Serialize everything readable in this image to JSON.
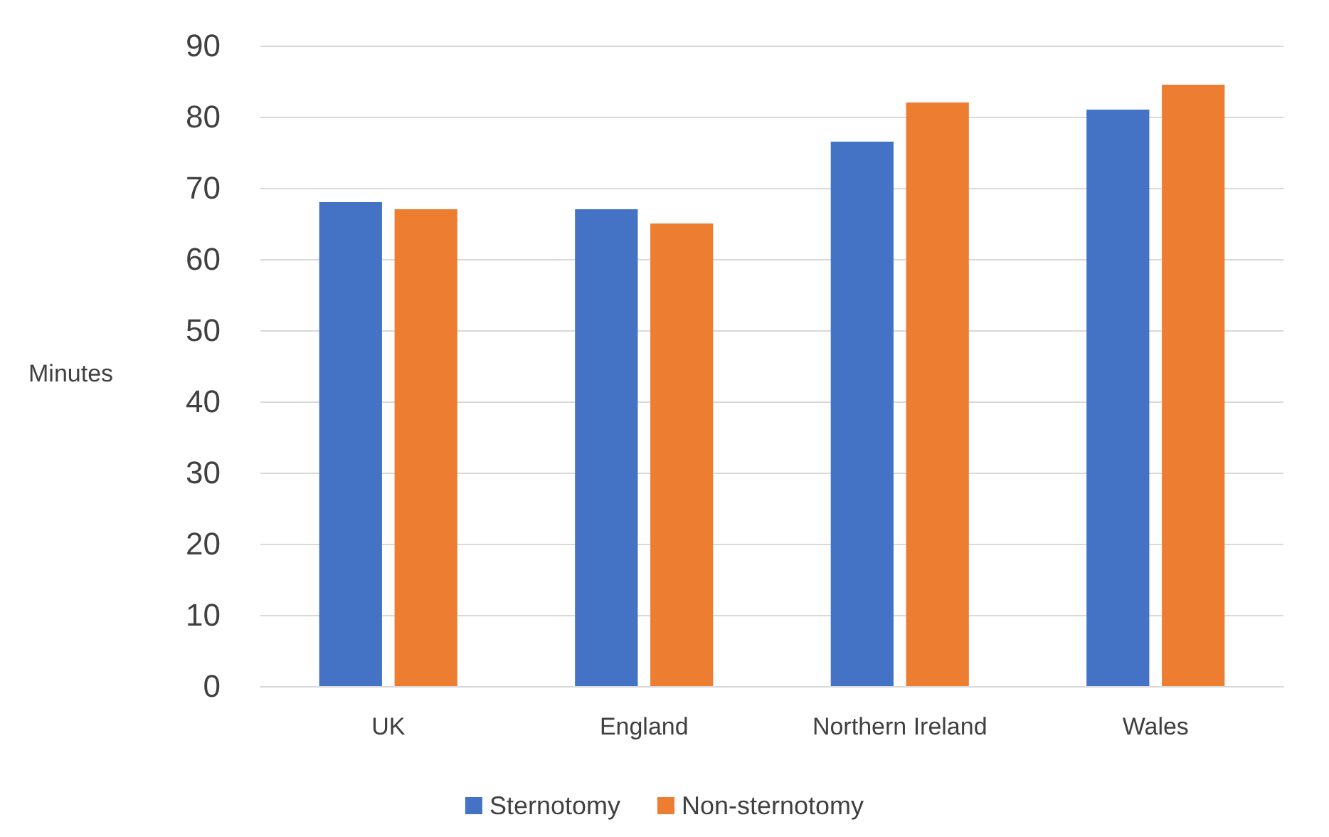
{
  "chart_data": {
    "type": "bar",
    "ylabel": "Minutes",
    "categories": [
      "UK",
      "England",
      "Northern Ireland",
      "Wales"
    ],
    "series": [
      {
        "name": "Sternotomy",
        "color": "#4472c4",
        "values": [
          68,
          67,
          76.5,
          81
        ]
      },
      {
        "name": "Non-sternotomy",
        "color": "#ed7d31",
        "values": [
          67,
          65,
          82,
          84.5
        ]
      }
    ],
    "ylim": [
      0,
      90
    ],
    "yticks": [
      0,
      10,
      20,
      30,
      40,
      50,
      60,
      70,
      80,
      90
    ],
    "grid": "y",
    "legend": "bottom"
  }
}
